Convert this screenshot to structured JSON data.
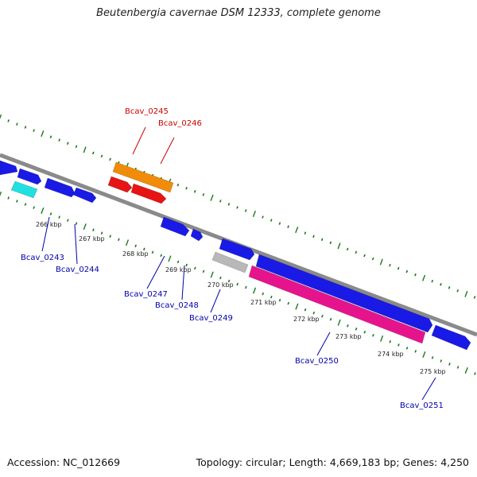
{
  "title": "Beutenbergia cavernae DSM 12333, complete genome",
  "footer": {
    "accession": "Accession: NC_012669",
    "topology": "Topology: circular; Length: 4,669,183 bp; Genes: 4,250"
  },
  "colors": {
    "backbone": "#8a8a8a",
    "ticks": "#1a7a1a",
    "gene_blue": "#1a1ae6",
    "gene_orange": "#f08c0a",
    "gene_red": "#e61414",
    "gene_cyan": "#20e0e0",
    "gene_gray": "#b8b8b8",
    "gene_pink": "#e6148c",
    "label_top": "#cc0000",
    "label_bottom": "#0000aa",
    "kbp_text": "#222222"
  },
  "kbp_labels": [
    "266 kbp",
    "267 kbp",
    "268 kbp",
    "269 kbp",
    "270 kbp",
    "271 kbp",
    "272 kbp",
    "273 kbp",
    "274 kbp",
    "275 kbp"
  ],
  "gene_labels": [
    "Bcav_0245",
    "Bcav_0246",
    "Bcav_0243",
    "Bcav_0244",
    "Bcav_0247",
    "Bcav_0248",
    "Bcav_0249",
    "Bcav_0250",
    "Bcav_0251"
  ]
}
